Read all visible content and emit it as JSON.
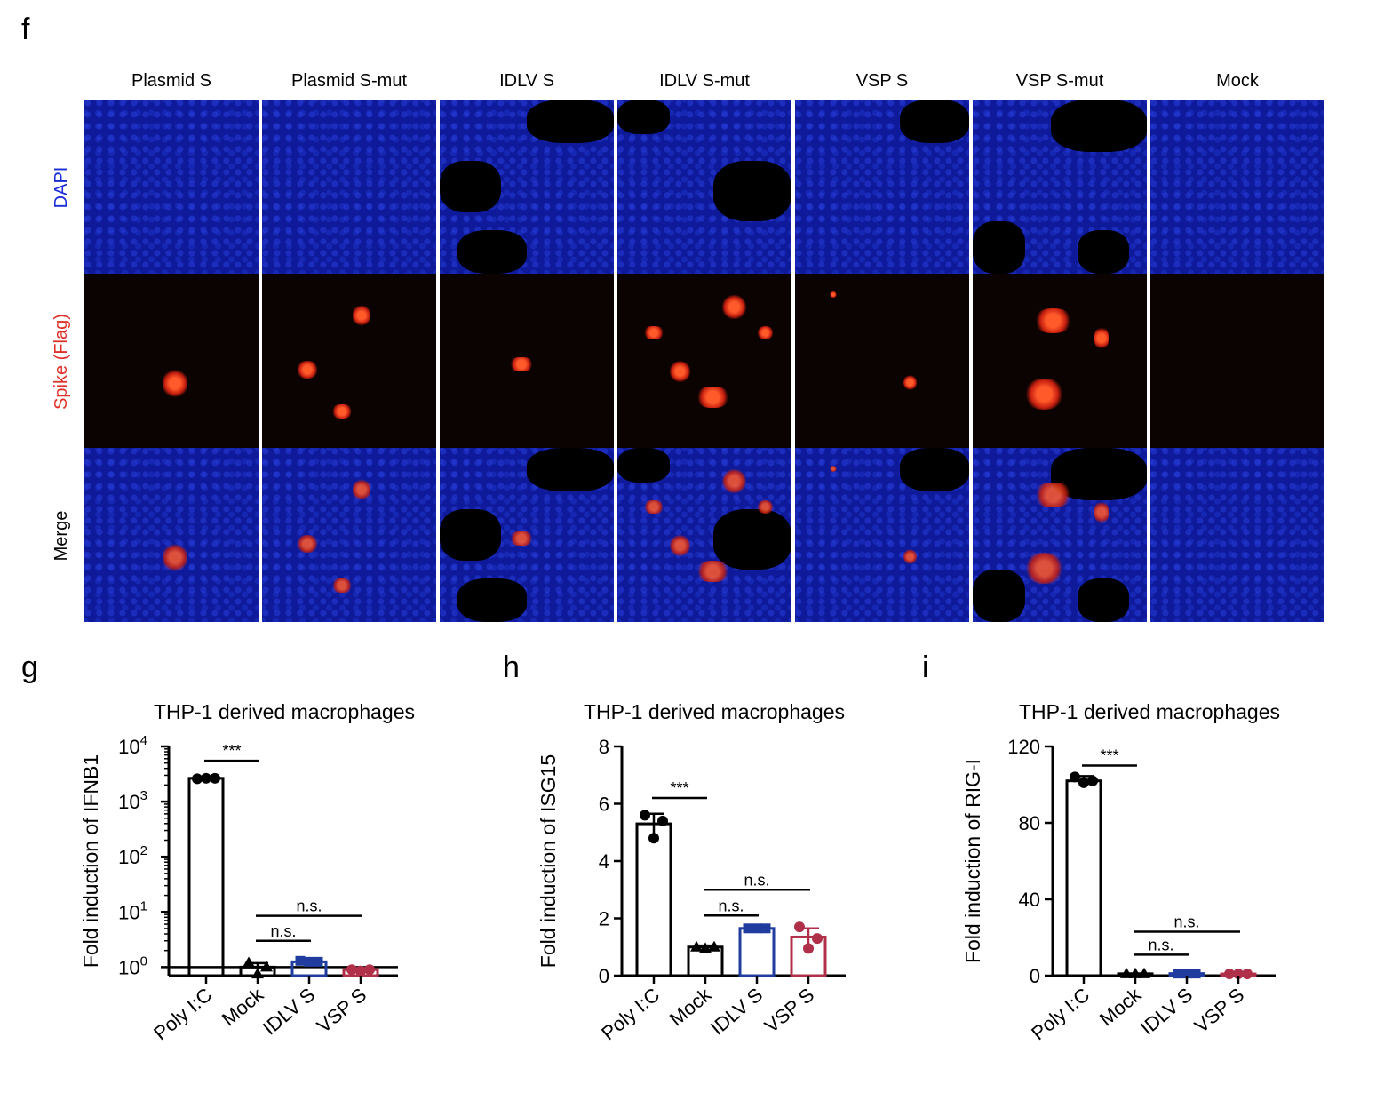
{
  "figure": {
    "panel_f_letter": "f",
    "panel_g_letter": "g",
    "panel_h_letter": "h",
    "panel_i_letter": "i",
    "columns": [
      "Plasmid S",
      "Plasmid S-mut",
      "IDLV S",
      "IDLV S-mut",
      "VSP S",
      "VSP S-mut",
      "Mock"
    ],
    "rows": [
      {
        "label": "DAPI",
        "color": "#1a2bd8"
      },
      {
        "label": "Spike (Flag)",
        "color": "#e0302a"
      },
      {
        "label": "Merge",
        "color": "#000000"
      }
    ]
  },
  "chart_data": [
    {
      "type": "bar",
      "title": "THP-1 derived macrophages",
      "ylabel": "Fold induction of IFNB1",
      "yscale": "log",
      "ylim": [
        0.7,
        10000
      ],
      "yticks": [
        {
          "v": 1,
          "base": "10",
          "exp": "0"
        },
        {
          "v": 10,
          "base": "10",
          "exp": "1"
        },
        {
          "v": 100,
          "base": "10",
          "exp": "2"
        },
        {
          "v": 1000,
          "base": "10",
          "exp": "3"
        },
        {
          "v": 10000,
          "base": "10",
          "exp": "4"
        }
      ],
      "categories": [
        "Poly I:C",
        "Mock",
        "IDLV S",
        "VSP S"
      ],
      "values": [
        2650,
        1.0,
        1.25,
        0.9
      ],
      "errors": [
        120,
        0.18,
        0.06,
        0.06
      ],
      "points": [
        [
          2600,
          2650,
          2650
        ],
        [
          1.2,
          0.75,
          1.0
        ],
        [
          1.3,
          1.25,
          1.25
        ],
        [
          0.9,
          0.85,
          0.9
        ]
      ],
      "colors": [
        "#000000",
        "#000000",
        "#1f3c9e",
        "#b0304a"
      ],
      "markers": [
        "circle",
        "triangle",
        "square",
        "circle"
      ],
      "significance": [
        {
          "from": 0,
          "to": 1,
          "label": "***",
          "y": 5500
        },
        {
          "from": 1,
          "to": 2,
          "label": "n.s.",
          "y": 3.0
        },
        {
          "from": 1,
          "to": 3,
          "label": "n.s.",
          "y": 8.5
        }
      ]
    },
    {
      "type": "bar",
      "title": "THP-1 derived macrophages",
      "ylabel": "Fold induction of ISG15",
      "yscale": "linear",
      "ylim": [
        0,
        8
      ],
      "yticks": [
        {
          "v": 0,
          "label": "0"
        },
        {
          "v": 2,
          "label": "2"
        },
        {
          "v": 4,
          "label": "4"
        },
        {
          "v": 6,
          "label": "6"
        },
        {
          "v": 8,
          "label": "8"
        }
      ],
      "categories": [
        "Poly I:C",
        "Mock",
        "IDLV S",
        "VSP S"
      ],
      "values": [
        5.3,
        1.0,
        1.65,
        1.35
      ],
      "errors": [
        0.35,
        0.05,
        0.05,
        0.3
      ],
      "points": [
        [
          5.6,
          4.8,
          5.4
        ],
        [
          1.0,
          0.95,
          1.0
        ],
        [
          1.65,
          1.65,
          1.65
        ],
        [
          1.7,
          0.95,
          1.3
        ]
      ],
      "colors": [
        "#000000",
        "#000000",
        "#1f3c9e",
        "#b0304a"
      ],
      "markers": [
        "circle",
        "triangle",
        "square",
        "circle"
      ],
      "significance": [
        {
          "from": 0,
          "to": 1,
          "label": "***",
          "y": 6.2
        },
        {
          "from": 1,
          "to": 2,
          "label": "n.s.",
          "y": 2.1
        },
        {
          "from": 1,
          "to": 3,
          "label": "n.s.",
          "y": 3.0
        }
      ]
    },
    {
      "type": "bar",
      "title": "THP-1 derived macrophages",
      "ylabel": "Fold induction of RIG-I",
      "yscale": "linear",
      "ylim": [
        0,
        120
      ],
      "yticks": [
        {
          "v": 0,
          "label": "0"
        },
        {
          "v": 40,
          "label": "40"
        },
        {
          "v": 80,
          "label": "80"
        },
        {
          "v": 120,
          "label": "120"
        }
      ],
      "categories": [
        "Poly I:C",
        "Mock",
        "IDLV S",
        "VSP S"
      ],
      "values": [
        102,
        1.0,
        1.1,
        0.9
      ],
      "errors": [
        2.5,
        0.1,
        0.1,
        0.1
      ],
      "points": [
        [
          104,
          101,
          102
        ],
        [
          1.0,
          1.0,
          1.0
        ],
        [
          1.1,
          1.1,
          1.1
        ],
        [
          0.9,
          0.9,
          0.9
        ]
      ],
      "colors": [
        "#000000",
        "#000000",
        "#1f3c9e",
        "#b0304a"
      ],
      "markers": [
        "circle",
        "triangle",
        "square",
        "circle"
      ],
      "significance": [
        {
          "from": 0,
          "to": 1,
          "label": "***",
          "y": 110
        },
        {
          "from": 1,
          "to": 2,
          "label": "n.s.",
          "y": 11
        },
        {
          "from": 1,
          "to": 3,
          "label": "n.s.",
          "y": 23
        }
      ]
    }
  ]
}
